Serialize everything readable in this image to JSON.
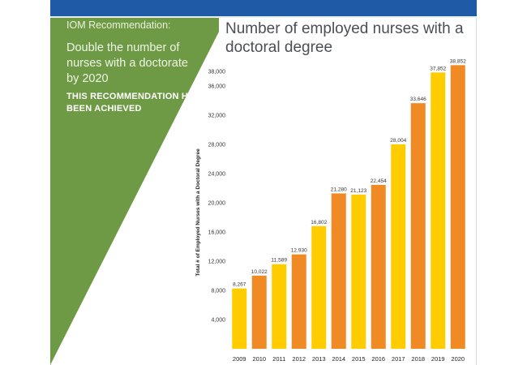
{
  "panel": {
    "heading": "IOM Recommendation:",
    "body": "Double the number of nurses with a doctorate by 2020",
    "achieved": "THIS RECOMMENDATION HAS BEEN ACHIEVED"
  },
  "colors": {
    "banner": "#1f5aa6",
    "panel_green": "#6f9a45",
    "bar_yellow": "#ffcc00",
    "bar_orange": "#f08a24"
  },
  "chart_data": {
    "type": "bar",
    "title": "Number of employed nurses with a doctoral degree",
    "ylabel": "Total # of Employed Nurses with a Doctoral Degree",
    "xlabel": "",
    "categories": [
      "2009",
      "2010",
      "2011",
      "2012",
      "2013",
      "2014",
      "2015",
      "2016",
      "2017",
      "2018",
      "2019",
      "2020"
    ],
    "values": [
      8267,
      10022,
      11589,
      12930,
      16802,
      21280,
      21123,
      22454,
      28004,
      33646,
      37852,
      38852
    ],
    "value_labels": [
      "8,267",
      "10,022",
      "11,589",
      "12,930",
      "16,802",
      "21,280",
      "21,123",
      "22,454",
      "28,004",
      "33,646",
      "37,852",
      "38,852"
    ],
    "bar_colors": [
      "yellow",
      "orange",
      "yellow",
      "orange",
      "yellow",
      "orange",
      "yellow",
      "orange",
      "yellow",
      "orange",
      "yellow",
      "orange"
    ],
    "yticks": [
      4000,
      8000,
      12000,
      16000,
      20000,
      24000,
      28000,
      32000,
      36000,
      38000
    ],
    "ytick_labels": [
      "4,000",
      "8,000",
      "12,000",
      "16,000",
      "20,000",
      "24,000",
      "28,000",
      "32,000",
      "36,000",
      "38,000"
    ],
    "ylim": [
      0,
      40000
    ],
    "grid": false,
    "legend": "none"
  }
}
